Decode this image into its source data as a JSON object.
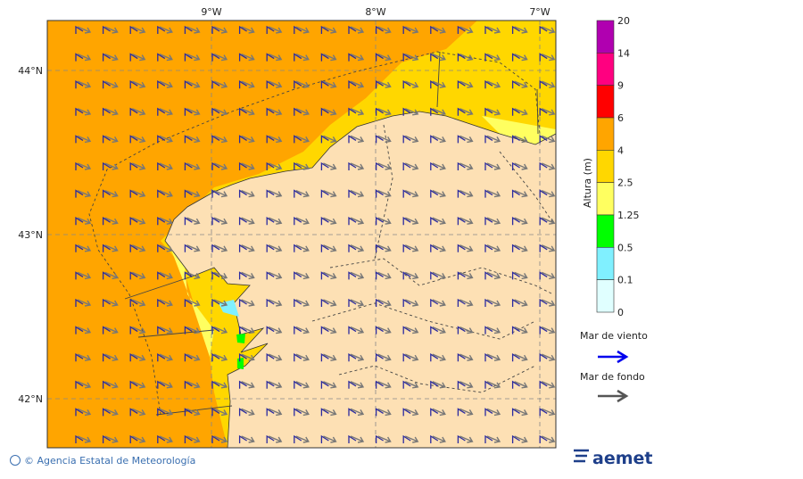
{
  "map": {
    "lon_labels": [
      "9°W",
      "8°W",
      "7°W"
    ],
    "lat_labels": [
      "44°N",
      "43°N",
      "42°N"
    ]
  },
  "legend": {
    "title": "Altura (m)",
    "levels": [
      "20",
      "14",
      "9",
      "6",
      "4",
      "2.5",
      "1.25",
      "0.5",
      "0.1",
      "0"
    ],
    "wind_sea": "Mar de viento",
    "swell": "Mar de fondo"
  },
  "footer": {
    "credit": "© Agencia Estatal de Meteorología",
    "logo": "aemet"
  }
}
